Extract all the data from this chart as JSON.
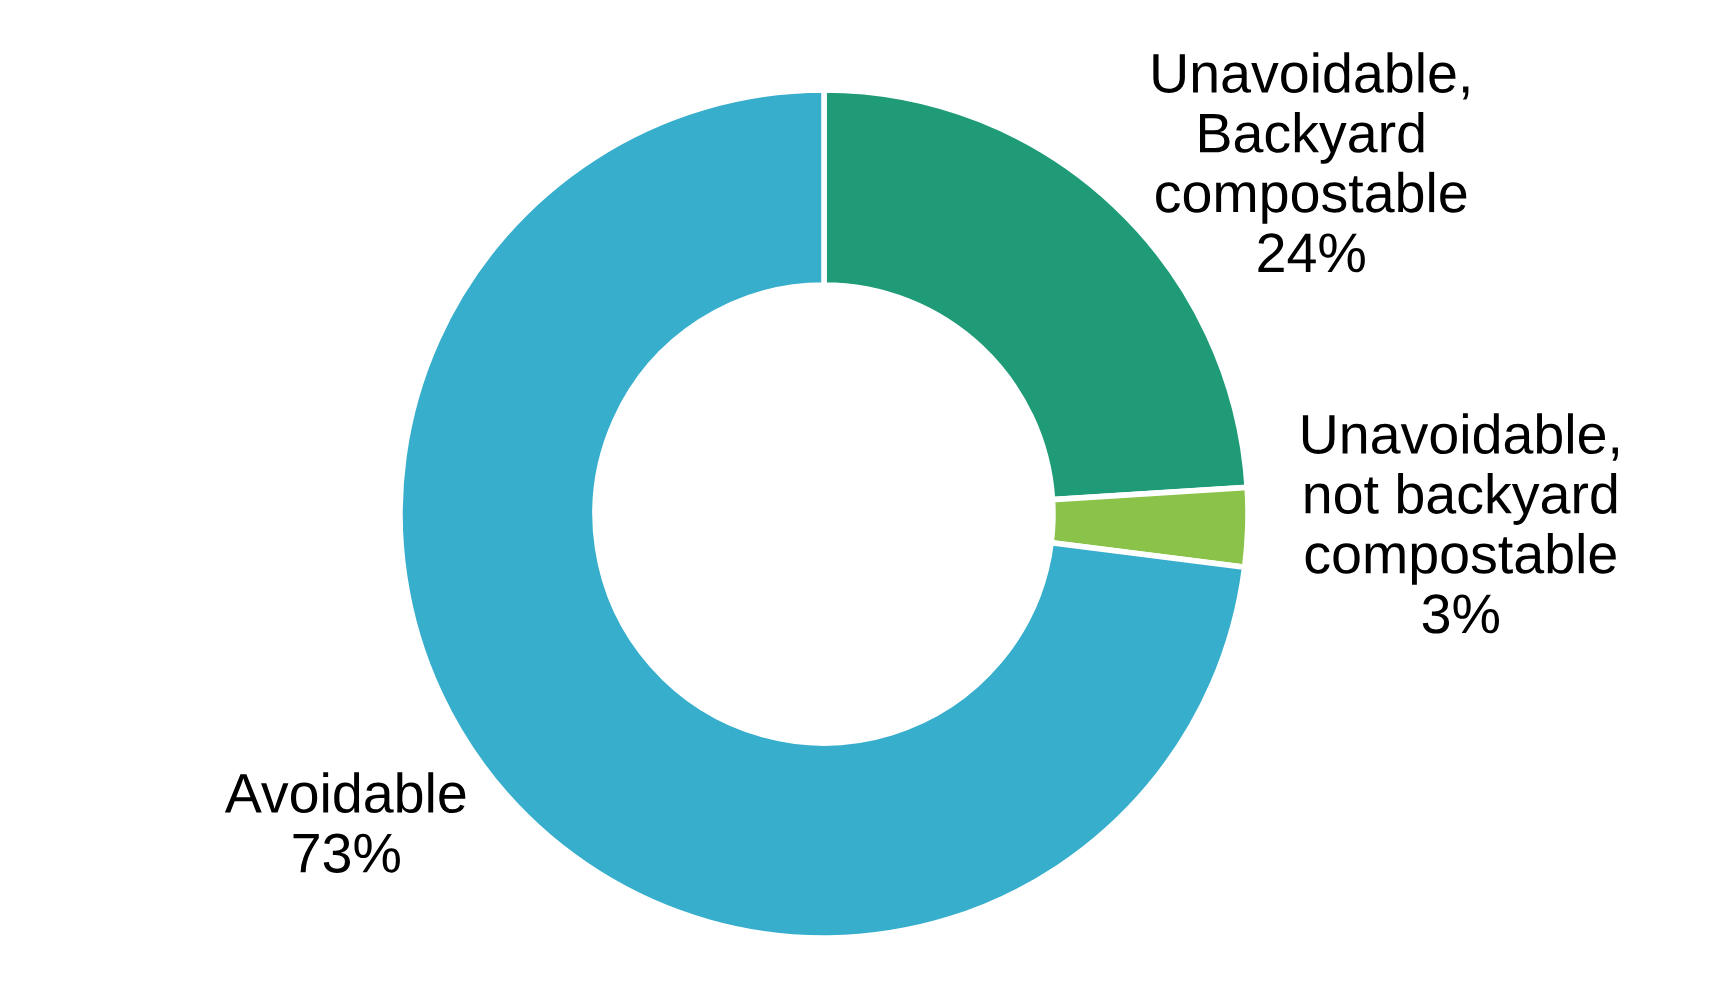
{
  "chart_data": {
    "type": "donut",
    "categories": [
      "Unavoidable,\nBackyard\ncompostable",
      "Unavoidable,\nnot backyard\ncompostable",
      "Avoidable"
    ],
    "values": [
      24,
      3,
      73
    ],
    "value_labels": [
      "24%",
      "3%",
      "73%"
    ],
    "colors": [
      "#1f9b78",
      "#8bc34a",
      "#38aecd"
    ]
  }
}
